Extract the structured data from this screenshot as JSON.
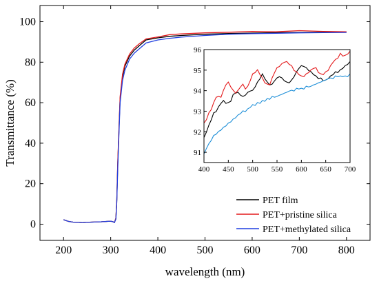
{
  "chart_data": {
    "type": "line",
    "xlabel": "wavelength (nm)",
    "ylabel": "Transmittance (%)",
    "xlim": [
      150,
      850
    ],
    "ylim": [
      -8,
      108
    ],
    "xticks": [
      200,
      300,
      400,
      500,
      600,
      700,
      800
    ],
    "yticks": [
      0,
      20,
      40,
      60,
      80,
      100
    ],
    "legend_position": "bottom-right",
    "series": [
      {
        "name": "PET film",
        "color": "#000000",
        "x": [
          200,
          210,
          220,
          240,
          260,
          280,
          300,
          305,
          308,
          311,
          313,
          315,
          318,
          320,
          325,
          330,
          340,
          350,
          360,
          375,
          400,
          425,
          450,
          500,
          550,
          600,
          650,
          700,
          750,
          800
        ],
        "y": [
          2.2,
          1.4,
          1.0,
          0.8,
          1.0,
          1.2,
          1.5,
          1.2,
          0.8,
          3.0,
          12.0,
          30.0,
          50.0,
          62.0,
          73.0,
          78.0,
          83.0,
          86.0,
          88.0,
          91.0,
          92.0,
          92.8,
          93.2,
          93.8,
          94.2,
          94.4,
          94.6,
          94.7,
          94.8,
          94.9
        ]
      },
      {
        "name": "PET+pristine silica",
        "color": "#e41a1c",
        "x": [
          200,
          210,
          220,
          240,
          260,
          280,
          300,
          305,
          308,
          311,
          313,
          315,
          318,
          320,
          325,
          330,
          340,
          350,
          360,
          375,
          400,
          425,
          450,
          500,
          550,
          600,
          650,
          700,
          750,
          800
        ],
        "y": [
          2.2,
          1.4,
          1.0,
          0.8,
          1.0,
          1.2,
          1.5,
          1.2,
          0.8,
          3.0,
          12.5,
          31.0,
          51.0,
          63.0,
          74.0,
          79.0,
          84.0,
          87.0,
          89.0,
          91.5,
          92.5,
          93.6,
          94.0,
          94.5,
          94.8,
          95.2,
          95.0,
          95.6,
          95.2,
          95.0
        ]
      },
      {
        "name": "PET+methylated silica",
        "color": "#1f3fe0",
        "x": [
          200,
          210,
          220,
          240,
          260,
          280,
          300,
          305,
          308,
          311,
          313,
          315,
          318,
          320,
          325,
          330,
          340,
          350,
          360,
          375,
          400,
          425,
          450,
          500,
          550,
          600,
          650,
          700,
          750,
          800
        ],
        "y": [
          2.2,
          1.4,
          1.0,
          0.8,
          1.0,
          1.2,
          1.5,
          1.2,
          0.8,
          2.5,
          11.0,
          28.0,
          48.0,
          60.0,
          71.0,
          76.0,
          81.5,
          84.5,
          86.5,
          89.5,
          91.0,
          91.8,
          92.4,
          93.2,
          93.8,
          94.1,
          94.3,
          94.5,
          94.6,
          94.7
        ]
      }
    ],
    "inset": {
      "xlim": [
        400,
        700
      ],
      "ylim": [
        90.5,
        96
      ],
      "xticks": [
        400,
        450,
        500,
        550,
        600,
        650,
        700
      ],
      "yticks": [
        91,
        92,
        93,
        94,
        95,
        96
      ],
      "series": [
        {
          "color": "#000000",
          "x": [
            400,
            405,
            410,
            415,
            420,
            425,
            430,
            435,
            440,
            445,
            450,
            455,
            460,
            465,
            470,
            475,
            480,
            485,
            490,
            495,
            500,
            505,
            510,
            515,
            520,
            525,
            530,
            535,
            540,
            545,
            550,
            555,
            560,
            565,
            570,
            575,
            580,
            585,
            590,
            595,
            600,
            605,
            610,
            615,
            620,
            625,
            630,
            635,
            640,
            645,
            650,
            655,
            660,
            665,
            670,
            675,
            680,
            685,
            690,
            695,
            700
          ],
          "y": [
            91.7,
            92.0,
            92.3,
            92.6,
            92.9,
            93.0,
            93.2,
            93.4,
            93.5,
            93.4,
            93.4,
            93.5,
            93.8,
            93.9,
            93.9,
            93.8,
            93.7,
            93.8,
            93.9,
            94.0,
            94.0,
            94.2,
            94.4,
            94.6,
            94.8,
            94.6,
            94.4,
            94.3,
            94.3,
            94.5,
            94.6,
            94.7,
            94.6,
            94.5,
            94.4,
            94.4,
            94.5,
            94.7,
            94.9,
            95.1,
            95.2,
            95.2,
            95.1,
            95.0,
            94.9,
            94.8,
            94.7,
            94.6,
            94.6,
            94.5,
            94.5,
            94.6,
            94.7,
            94.8,
            94.9,
            94.9,
            95.0,
            95.1,
            95.2,
            95.3,
            95.4
          ]
        },
        {
          "color": "#e41a1c",
          "x": [
            400,
            405,
            410,
            415,
            420,
            425,
            430,
            435,
            440,
            445,
            450,
            455,
            460,
            465,
            470,
            475,
            480,
            485,
            490,
            495,
            500,
            505,
            510,
            515,
            520,
            525,
            530,
            535,
            540,
            545,
            550,
            555,
            560,
            565,
            570,
            575,
            580,
            585,
            590,
            595,
            600,
            605,
            610,
            615,
            620,
            625,
            630,
            635,
            640,
            645,
            650,
            655,
            660,
            665,
            670,
            675,
            680,
            685,
            690,
            695,
            700
          ],
          "y": [
            92.4,
            92.6,
            92.9,
            93.1,
            93.4,
            93.7,
            93.7,
            93.7,
            94.0,
            94.3,
            94.4,
            94.2,
            94.0,
            93.9,
            94.0,
            94.2,
            94.3,
            94.1,
            94.2,
            94.5,
            94.8,
            94.9,
            95.0,
            94.8,
            94.6,
            94.4,
            94.3,
            94.3,
            94.6,
            94.9,
            95.1,
            95.2,
            95.3,
            95.4,
            95.4,
            95.3,
            95.2,
            95.0,
            94.9,
            94.8,
            94.7,
            94.7,
            94.8,
            94.9,
            95.0,
            95.1,
            95.1,
            94.9,
            94.8,
            94.8,
            94.9,
            95.0,
            95.2,
            95.4,
            95.5,
            95.6,
            95.8,
            95.7,
            95.7,
            95.8,
            95.9
          ]
        },
        {
          "color": "#1e8fd8",
          "x": [
            400,
            405,
            410,
            415,
            420,
            425,
            430,
            435,
            440,
            445,
            450,
            455,
            460,
            465,
            470,
            475,
            480,
            485,
            490,
            495,
            500,
            505,
            510,
            515,
            520,
            525,
            530,
            535,
            540,
            545,
            550,
            555,
            560,
            565,
            570,
            575,
            580,
            585,
            590,
            595,
            600,
            605,
            610,
            615,
            620,
            625,
            630,
            635,
            640,
            645,
            650,
            655,
            660,
            665,
            670,
            675,
            680,
            685,
            690,
            695,
            700
          ],
          "y": [
            90.9,
            91.2,
            91.4,
            91.6,
            91.8,
            91.9,
            92.0,
            92.1,
            92.2,
            92.3,
            92.4,
            92.5,
            92.6,
            92.7,
            92.8,
            92.9,
            93.0,
            93.0,
            93.1,
            93.2,
            93.3,
            93.3,
            93.4,
            93.4,
            93.5,
            93.5,
            93.6,
            93.6,
            93.7,
            93.7,
            93.7,
            93.8,
            93.8,
            93.9,
            93.9,
            94.0,
            94.0,
            94.0,
            94.1,
            94.1,
            94.1,
            94.1,
            94.2,
            94.2,
            94.2,
            94.3,
            94.3,
            94.4,
            94.4,
            94.5,
            94.5,
            94.6,
            94.6,
            94.6,
            94.7,
            94.7,
            94.7,
            94.7,
            94.7,
            94.7,
            94.8
          ]
        }
      ]
    }
  }
}
